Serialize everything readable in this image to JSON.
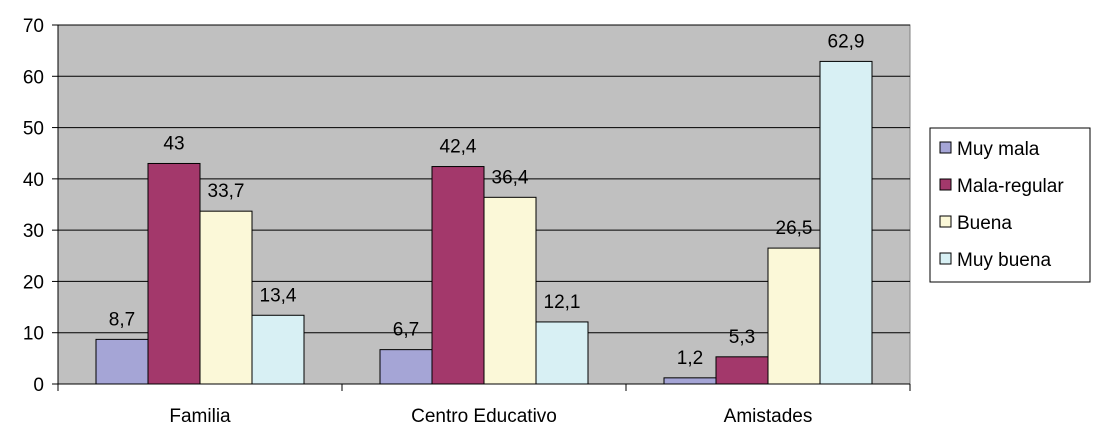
{
  "chart_data": {
    "type": "bar",
    "title": "",
    "xlabel": "",
    "ylabel": "",
    "ylim": [
      0,
      70
    ],
    "yticks": [
      0,
      10,
      20,
      30,
      40,
      50,
      60,
      70
    ],
    "grid": true,
    "legend_position": "right",
    "categories": [
      "Familia",
      "Centro Educativo",
      "Amistades"
    ],
    "series": [
      {
        "name": "Muy mala",
        "color": "#a5a5d6",
        "values": [
          8.7,
          6.7,
          1.2
        ],
        "labels": [
          "8,7",
          "6,7",
          "1,2"
        ]
      },
      {
        "name": "Mala-regular",
        "color": "#a3386b",
        "values": [
          43,
          42.4,
          5.3
        ],
        "labels": [
          "43",
          "42,4",
          "5,3"
        ]
      },
      {
        "name": "Buena",
        "color": "#fbf8d8",
        "values": [
          33.7,
          36.4,
          26.5
        ],
        "labels": [
          "33,7",
          "36,4",
          "26,5"
        ]
      },
      {
        "name": "Muy buena",
        "color": "#d8f0f4",
        "values": [
          13.4,
          12.1,
          62.9
        ],
        "labels": [
          "13,4",
          "12,1",
          "62,9"
        ]
      }
    ],
    "plot_background": "#c0c0c0"
  }
}
